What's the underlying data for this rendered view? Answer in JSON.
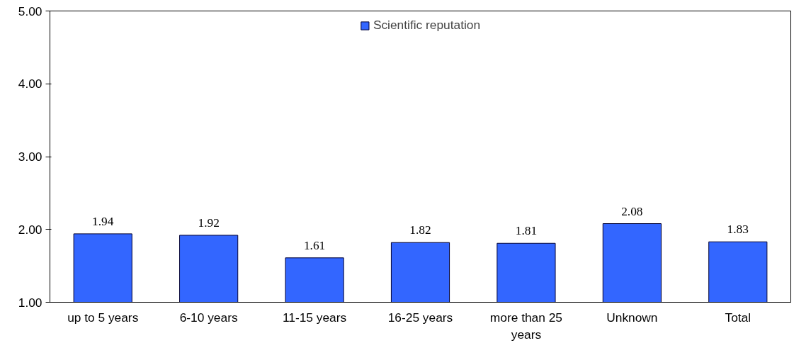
{
  "chart_data": {
    "type": "bar",
    "categories": [
      "up to 5 years",
      "6-10 years",
      "11-15 years",
      "16-25 years",
      "more than 25 years",
      "Unknown",
      "Total"
    ],
    "series": [
      {
        "name": "Scientific reputation",
        "color": "#3366ff",
        "values": [
          1.94,
          1.92,
          1.61,
          1.82,
          1.81,
          2.08,
          1.83
        ]
      }
    ],
    "ylim": [
      1,
      5
    ],
    "yticks": [
      {
        "value": 1,
        "label": "1.00"
      },
      {
        "value": 2,
        "label": "2.00"
      },
      {
        "value": 3,
        "label": "3.00"
      },
      {
        "value": 4,
        "label": "4.00"
      },
      {
        "value": 5,
        "label": "5.00"
      }
    ],
    "grid": false,
    "legend": "top",
    "data_labels": true
  }
}
